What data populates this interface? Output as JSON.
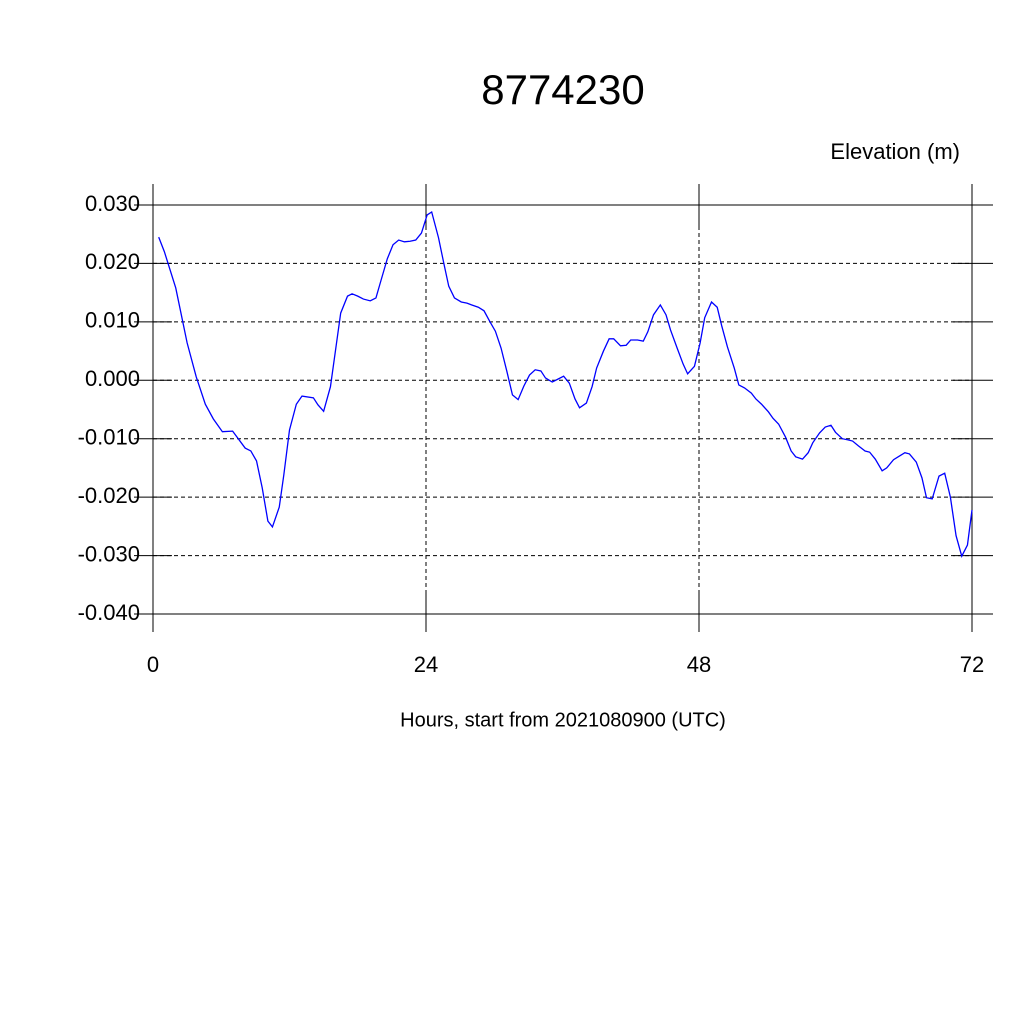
{
  "chart_data": {
    "type": "line",
    "title": "8774230",
    "y_label": "Elevation (m)",
    "x_label": "Hours, start from 2021080900 (UTC)",
    "x": [
      0.5,
      1.0,
      2.0,
      3.0,
      3.8,
      4.6,
      5.3,
      6.1,
      7.0,
      8.1,
      8.6,
      9.1,
      9.6,
      10.1,
      10.5,
      11.1,
      11.5,
      12.0,
      12.6,
      13.1,
      14.1,
      14.5,
      15.0,
      15.6,
      16.1,
      16.5,
      17.1,
      17.5,
      18.0,
      18.5,
      19.1,
      19.6,
      20.0,
      20.6,
      21.1,
      21.6,
      22.1,
      22.6,
      23.1,
      23.6,
      24.1,
      24.5,
      25.1,
      25.6,
      26.0,
      26.5,
      27.1,
      27.6,
      28.0,
      28.6,
      29.1,
      29.6,
      30.1,
      30.6,
      31.1,
      31.6,
      32.1,
      32.6,
      33.1,
      33.6,
      34.1,
      34.5,
      35.1,
      35.6,
      36.1,
      36.6,
      37.1,
      37.5,
      38.1,
      38.6,
      39.0,
      39.6,
      40.1,
      40.5,
      41.1,
      41.6,
      42.0,
      42.6,
      43.1,
      43.5,
      44.0,
      44.6,
      45.1,
      45.5,
      46.1,
      46.6,
      47.0,
      47.6,
      48.1,
      48.5,
      49.1,
      49.6,
      50.0,
      50.5,
      51.1,
      51.5,
      52.0,
      52.6,
      53.0,
      53.5,
      54.1,
      54.5,
      55.0,
      55.6,
      56.1,
      56.5,
      57.1,
      57.6,
      58.0,
      58.6,
      59.1,
      59.6,
      60.0,
      60.6,
      61.1,
      61.5,
      62.0,
      62.6,
      63.0,
      63.5,
      64.1,
      64.5,
      65.1,
      65.6,
      66.1,
      66.5,
      67.1,
      67.6,
      68.0,
      68.5,
      69.1,
      69.6,
      70.1,
      70.6,
      71.1,
      71.6,
      72.0
    ],
    "series": [
      {
        "name": "Elevation",
        "color": "#0000ff",
        "values": [
          0.0245,
          0.022,
          0.0158,
          0.0064,
          0.0006,
          -0.0041,
          -0.0066,
          -0.0088,
          -0.0087,
          -0.0116,
          -0.0121,
          -0.0138,
          -0.0184,
          -0.0241,
          -0.0251,
          -0.0217,
          -0.0162,
          -0.0085,
          -0.0041,
          -0.0027,
          -0.003,
          -0.0042,
          -0.0053,
          -0.0011,
          0.0059,
          0.0115,
          0.0144,
          0.0148,
          0.0144,
          0.0139,
          0.0136,
          0.0141,
          0.0168,
          0.0208,
          0.0232,
          0.024,
          0.0237,
          0.0238,
          0.024,
          0.0252,
          0.0283,
          0.0288,
          0.0244,
          0.0197,
          0.0161,
          0.0141,
          0.0134,
          0.0132,
          0.0129,
          0.0125,
          0.0119,
          0.0101,
          0.0084,
          0.0055,
          0.0016,
          -0.0025,
          -0.0033,
          -0.001,
          0.0009,
          0.0018,
          0.0016,
          0.0004,
          -0.0003,
          0.0002,
          0.0007,
          -0.0005,
          -0.0032,
          -0.0047,
          -0.0039,
          -0.0011,
          0.0021,
          0.005,
          0.0071,
          0.0071,
          0.0059,
          0.006,
          0.0069,
          0.0069,
          0.0067,
          0.0083,
          0.0112,
          0.0129,
          0.0112,
          0.0086,
          0.0054,
          0.0028,
          0.0011,
          0.0024,
          0.0064,
          0.0107,
          0.0134,
          0.0125,
          0.0093,
          0.0057,
          0.0021,
          -0.0008,
          -0.0013,
          -0.0022,
          -0.0032,
          -0.0041,
          -0.0054,
          -0.0065,
          -0.0075,
          -0.0097,
          -0.0121,
          -0.0131,
          -0.0135,
          -0.0124,
          -0.0107,
          -0.009,
          -0.008,
          -0.0077,
          -0.0089,
          -0.01,
          -0.0102,
          -0.0104,
          -0.0112,
          -0.0121,
          -0.0123,
          -0.0135,
          -0.0155,
          -0.015,
          -0.0136,
          -0.013,
          -0.0124,
          -0.0126,
          -0.014,
          -0.0167,
          -0.0201,
          -0.0203,
          -0.0164,
          -0.0159,
          -0.02,
          -0.0266,
          -0.0301,
          -0.0282,
          -0.0222
        ]
      }
    ],
    "xlim": [
      0,
      72
    ],
    "xticks": [
      0,
      24,
      48,
      72
    ],
    "ylim": [
      -0.04,
      0.03
    ],
    "yticks": [
      {
        "value": -0.04,
        "label": "-0.040"
      },
      {
        "value": -0.03,
        "label": "-0.030"
      },
      {
        "value": -0.02,
        "label": "-0.020"
      },
      {
        "value": -0.01,
        "label": "-0.010"
      },
      {
        "value": 0,
        "label": "0.000"
      },
      {
        "value": 0.01,
        "label": "0.010"
      },
      {
        "value": 0.02,
        "label": "0.020"
      },
      {
        "value": 0.03,
        "label": "0.030"
      }
    ],
    "grid": true
  }
}
